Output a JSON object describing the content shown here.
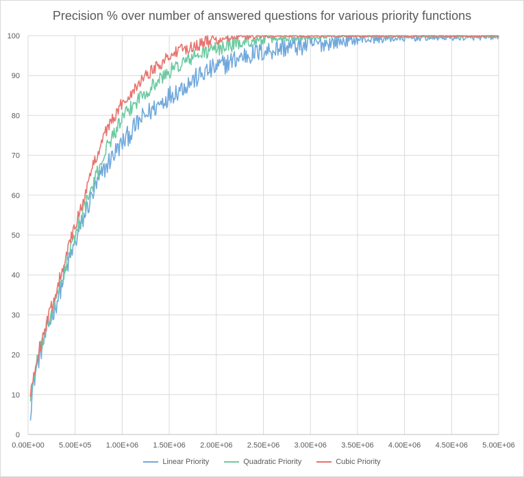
{
  "chart_data": {
    "type": "line",
    "title": "Precision % over number of answered questions for various priority functions",
    "xlabel": "",
    "ylabel": "",
    "xlim": [
      0,
      5000000
    ],
    "ylim": [
      0,
      100
    ],
    "grid": true,
    "legend_placement": "bottom",
    "x_ticks": [
      "0.00E+00",
      "5.00E+05",
      "1.00E+06",
      "1.50E+06",
      "2.00E+06",
      "2.50E+06",
      "3.00E+06",
      "3.50E+06",
      "4.00E+06",
      "4.50E+06",
      "5.00E+06"
    ],
    "y_ticks": [
      "0",
      "10",
      "20",
      "30",
      "40",
      "50",
      "60",
      "70",
      "80",
      "90",
      "100"
    ],
    "series": [
      {
        "name": "Linear Priority",
        "color": "#6fa8dc",
        "noise": 2.6,
        "x": [
          25000,
          50000,
          100000,
          150000,
          200000,
          300000,
          400000,
          500000,
          600000,
          700000,
          800000,
          900000,
          1000000,
          1100000,
          1200000,
          1300000,
          1400000,
          1500000,
          1700000,
          1900000,
          2100000,
          2300000,
          2500000,
          2700000,
          2900000,
          3100000,
          3300000,
          3500000,
          3800000,
          4100000,
          4400000,
          4700000,
          5000000
        ],
        "y": [
          6,
          12,
          18,
          22,
          26,
          33,
          41,
          48,
          55,
          61,
          66,
          70,
          73,
          76,
          79,
          81,
          83,
          85,
          88,
          91,
          93,
          95,
          96,
          97,
          97.5,
          98,
          98.5,
          99,
          99.2,
          99.4,
          99.5,
          99.5,
          99.6
        ]
      },
      {
        "name": "Quadratic Priority",
        "color": "#6cc9a0",
        "noise": 1.9,
        "x": [
          25000,
          50000,
          100000,
          150000,
          200000,
          300000,
          400000,
          500000,
          600000,
          700000,
          800000,
          900000,
          1000000,
          1100000,
          1200000,
          1300000,
          1400000,
          1500000,
          1700000,
          1900000,
          2100000,
          2300000,
          2500000,
          2700000,
          2900000,
          3100000,
          3300000,
          3500000,
          3800000,
          4100000,
          4400000,
          4700000,
          5000000
        ],
        "y": [
          9,
          13,
          19,
          23,
          27,
          34,
          42,
          50,
          57,
          63,
          70,
          75,
          79,
          82,
          85,
          87,
          89,
          91,
          94,
          96,
          97.5,
          98.5,
          99,
          99.3,
          99.5,
          99.7,
          99.8,
          99.8,
          99.8,
          99.8,
          99.8,
          99.8,
          99.8
        ]
      },
      {
        "name": "Cubic Priority",
        "color": "#e8726e",
        "noise": 1.6,
        "x": [
          25000,
          50000,
          100000,
          150000,
          200000,
          300000,
          400000,
          500000,
          600000,
          700000,
          800000,
          900000,
          1000000,
          1100000,
          1200000,
          1300000,
          1400000,
          1500000,
          1700000,
          1900000,
          2100000,
          2300000,
          2500000,
          2700000,
          2900000,
          3100000,
          3300000,
          3500000,
          3800000,
          4100000,
          4400000,
          4700000,
          5000000
        ],
        "y": [
          9,
          14,
          20,
          24,
          28,
          36,
          45,
          52,
          60,
          68,
          75,
          79,
          83,
          86,
          89,
          91,
          93,
          95,
          97,
          98.5,
          99.2,
          99.6,
          99.8,
          99.9,
          99.9,
          99.9,
          99.9,
          99.9,
          99.9,
          99.9,
          99.9,
          99.9,
          99.9
        ]
      }
    ]
  }
}
